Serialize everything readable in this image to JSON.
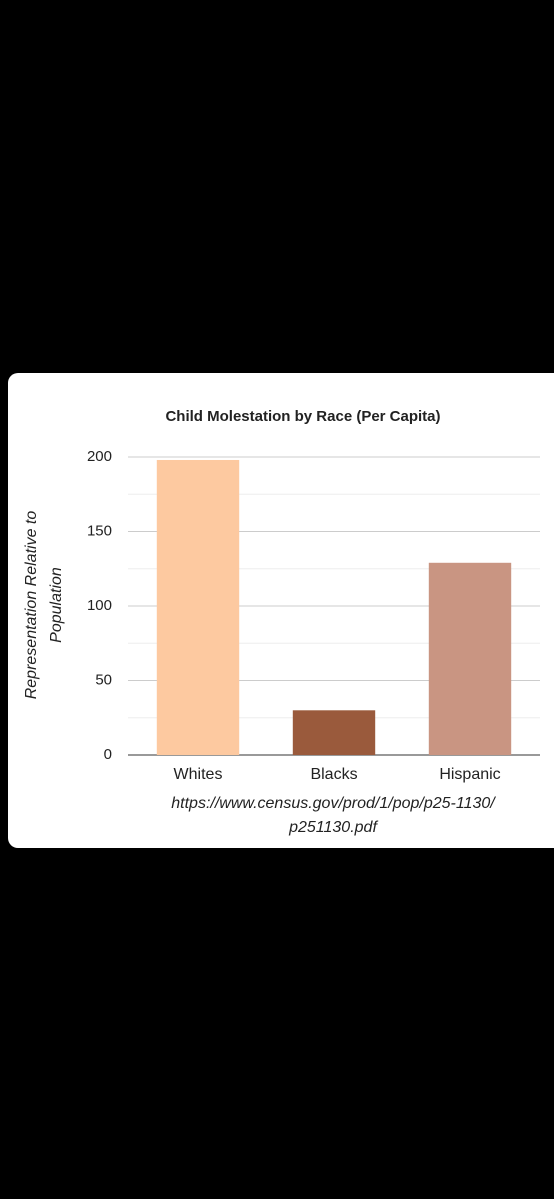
{
  "chart_data": {
    "type": "bar",
    "title": "Child Molestation by Race (Per Capita)",
    "ylabel": [
      "Representation Relative to",
      "Population"
    ],
    "categories": [
      "Whites",
      "Blacks",
      "Hispanic"
    ],
    "values": [
      198,
      30,
      129
    ],
    "colors": [
      "#fdc9a0",
      "#9a5a3c",
      "#c99582"
    ],
    "ylim": [
      0,
      200
    ],
    "yticks": [
      0,
      50,
      100,
      150,
      200
    ],
    "minor_yticks": [
      25,
      75,
      125,
      175
    ],
    "grid": true,
    "source": [
      "https://www.census.gov/prod/1/pop/p25-1130/",
      "p251130.pdf"
    ]
  }
}
